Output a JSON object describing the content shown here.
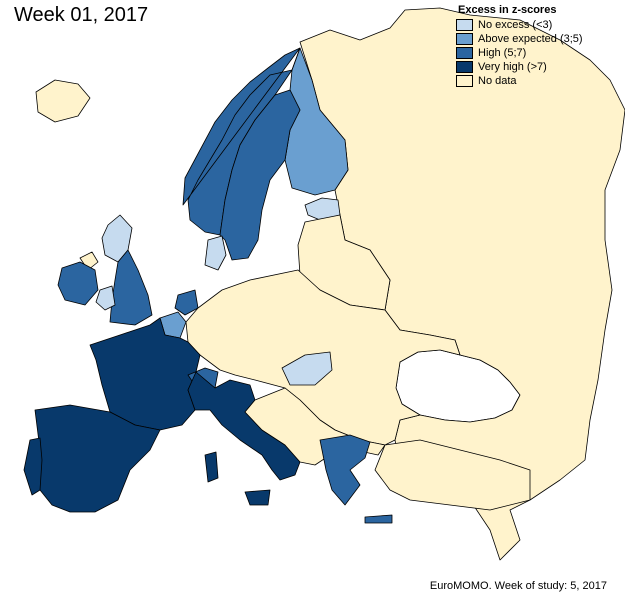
{
  "title": "Week 01, 2017",
  "footer": "EuroMOMO. Week of study: 5, 2017",
  "legend": {
    "title": "Excess in z-scores",
    "items": [
      {
        "label": "No excess (<3)",
        "color": "#c6dbef"
      },
      {
        "label": "Above expected (3;5)",
        "color": "#6a9fd0"
      },
      {
        "label": "High (5;7)",
        "color": "#2b65a0"
      },
      {
        "label": "Very high (>7)",
        "color": "#08396b"
      },
      {
        "label": "No data",
        "color": "#fff3cc"
      }
    ]
  },
  "map_data": {
    "type": "choropleth",
    "countries": [
      {
        "id": "iceland",
        "category": "No data"
      },
      {
        "id": "norway",
        "category": "High (5;7)"
      },
      {
        "id": "sweden",
        "category": "High (5;7)"
      },
      {
        "id": "finland",
        "category": "Above expected (3;5)"
      },
      {
        "id": "estonia",
        "category": "No excess (<3)"
      },
      {
        "id": "denmark",
        "category": "No excess (<3)"
      },
      {
        "id": "scotland",
        "category": "No excess (<3)"
      },
      {
        "id": "england",
        "category": "High (5;7)"
      },
      {
        "id": "wales",
        "category": "No excess (<3)"
      },
      {
        "id": "northern-ireland",
        "category": "No data"
      },
      {
        "id": "ireland",
        "category": "High (5;7)"
      },
      {
        "id": "netherlands",
        "category": "High (5;7)"
      },
      {
        "id": "belgium",
        "category": "Above expected (3;5)"
      },
      {
        "id": "france",
        "category": "Very high (>7)"
      },
      {
        "id": "spain",
        "category": "Very high (>7)"
      },
      {
        "id": "portugal",
        "category": "Very high (>7)"
      },
      {
        "id": "switzerland",
        "category": "High (5;7)"
      },
      {
        "id": "italy",
        "category": "Very high (>7)"
      },
      {
        "id": "malta",
        "category": "Very high (>7)"
      },
      {
        "id": "hungary",
        "category": "No excess (<3)"
      },
      {
        "id": "greece",
        "category": "High (5;7)"
      },
      {
        "id": "russia",
        "category": "No data"
      },
      {
        "id": "germany",
        "category": "No data"
      },
      {
        "id": "poland",
        "category": "No data"
      },
      {
        "id": "ukraine",
        "category": "No data"
      },
      {
        "id": "turkey",
        "category": "No data"
      }
    ]
  }
}
